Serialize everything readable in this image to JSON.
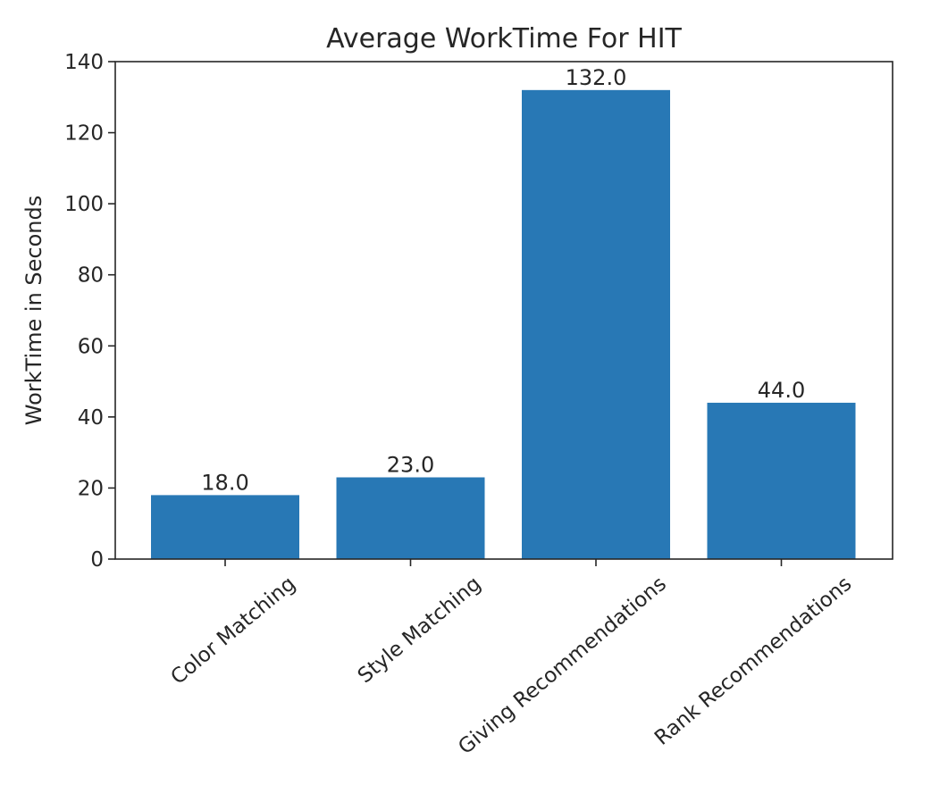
{
  "chart_data": {
    "type": "bar",
    "title": "Average WorkTime For HIT",
    "xlabel": "",
    "ylabel": "WorkTime in Seconds",
    "categories": [
      "Color Matching",
      "Style Matching",
      "Giving Recommendations",
      "Rank Recommendations"
    ],
    "values": [
      18.0,
      23.0,
      132.0,
      44.0
    ],
    "value_labels": [
      "18.0",
      "23.0",
      "132.0",
      "44.0"
    ],
    "ylim": [
      0,
      140
    ],
    "yticks": [
      0,
      20,
      40,
      60,
      80,
      100,
      120,
      140
    ],
    "grid": false,
    "bar_color": "#2878b5"
  }
}
